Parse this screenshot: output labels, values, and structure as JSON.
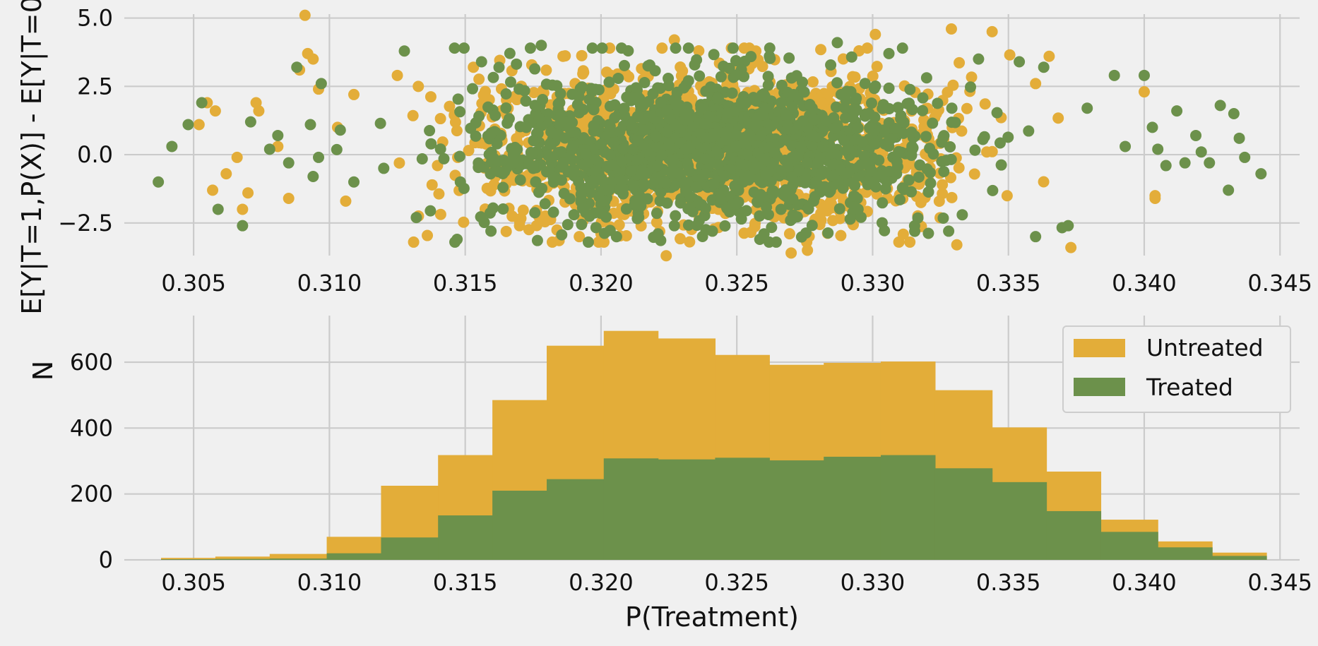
{
  "colors": {
    "untreated": "#e3ad39",
    "treated": "#6c914b",
    "background": "#f0f0f0",
    "grid": "#cbcbcb"
  },
  "chart_data": [
    {
      "type": "scatter",
      "title": "",
      "xlabel": "",
      "ylabel": "E[Y|T=1,P(X)] - E[Y|T=0",
      "xlim": [
        0.3025,
        0.3458
      ],
      "ylim": [
        -3.9,
        5.35
      ],
      "xticks": [
        "0.305",
        "0.310",
        "0.315",
        "0.320",
        "0.325",
        "0.330",
        "0.335",
        "0.340",
        "0.345"
      ],
      "yticks": [
        "5.0",
        "2.5",
        "0.0",
        "−2.5"
      ],
      "grid": true,
      "series": [
        {
          "name": "Untreated",
          "description": "Dense cloud centred near 0 (spread roughly -3.5 to 4.5) concentrated between x=0.312 and x=0.337; sparse points toward edges",
          "points": [
            [
              0.3052,
              1.1
            ],
            [
              0.3055,
              1.9
            ],
            [
              0.3057,
              -1.3
            ],
            [
              0.3058,
              1.6
            ],
            [
              0.3062,
              -0.7
            ],
            [
              0.3066,
              -0.1
            ],
            [
              0.3068,
              -2.0
            ],
            [
              0.307,
              -1.4
            ],
            [
              0.3073,
              1.9
            ],
            [
              0.3074,
              1.6
            ],
            [
              0.3081,
              0.3
            ],
            [
              0.3085,
              -1.6
            ],
            [
              0.3089,
              3.1
            ],
            [
              0.3091,
              5.1
            ],
            [
              0.3092,
              3.7
            ],
            [
              0.3094,
              3.5
            ],
            [
              0.3096,
              2.4
            ],
            [
              0.3103,
              1.0
            ],
            [
              0.3106,
              -1.7
            ],
            [
              0.3109,
              2.2
            ],
            [
              0.3125,
              2.9
            ],
            [
              0.3131,
              -3.2
            ],
            [
              0.3153,
              3.2
            ],
            [
              0.317,
              -2.6
            ],
            [
              0.3186,
              3.6
            ],
            [
              0.3192,
              -3.0
            ],
            [
              0.32,
              -2.9
            ],
            [
              0.3224,
              -3.7
            ],
            [
              0.3227,
              4.2
            ],
            [
              0.3236,
              3.8
            ],
            [
              0.3248,
              3.9
            ],
            [
              0.327,
              -3.6
            ],
            [
              0.3276,
              -3.5
            ],
            [
              0.3295,
              3.8
            ],
            [
              0.3301,
              4.4
            ],
            [
              0.3329,
              4.6
            ],
            [
              0.3331,
              -3.3
            ],
            [
              0.3344,
              4.5
            ],
            [
              0.336,
              2.6
            ],
            [
              0.3365,
              3.6
            ],
            [
              0.3373,
              -3.4
            ],
            [
              0.34,
              2.3
            ],
            [
              0.3404,
              -1.6
            ],
            [
              0.3404,
              -1.5
            ]
          ]
        },
        {
          "name": "Treated",
          "description": "Dense cloud centred near 0 overlapping the untreated cloud; sparse points toward edges",
          "points": [
            [
              0.3037,
              -1.0
            ],
            [
              0.3042,
              0.3
            ],
            [
              0.3048,
              1.1
            ],
            [
              0.3053,
              1.9
            ],
            [
              0.3059,
              -2.0
            ],
            [
              0.3068,
              -2.6
            ],
            [
              0.3071,
              1.2
            ],
            [
              0.3078,
              0.2
            ],
            [
              0.3081,
              0.7
            ],
            [
              0.3085,
              -0.3
            ],
            [
              0.3088,
              3.2
            ],
            [
              0.3093,
              1.1
            ],
            [
              0.3094,
              -0.8
            ],
            [
              0.3096,
              -0.1
            ],
            [
              0.3097,
              2.6
            ],
            [
              0.3104,
              0.9
            ],
            [
              0.3109,
              -1.0
            ],
            [
              0.312,
              -0.5
            ],
            [
              0.3132,
              -2.3
            ],
            [
              0.3147,
              -3.1
            ],
            [
              0.3156,
              3.4
            ],
            [
              0.3174,
              3.9
            ],
            [
              0.3178,
              4.0
            ],
            [
              0.321,
              3.8
            ],
            [
              0.3221,
              -2.9
            ],
            [
              0.3227,
              -2.6
            ],
            [
              0.3241,
              -2.8
            ],
            [
              0.326,
              -2.9
            ],
            [
              0.3262,
              3.6
            ],
            [
              0.3287,
              4.1
            ],
            [
              0.3306,
              3.7
            ],
            [
              0.3311,
              3.9
            ],
            [
              0.3328,
              -2.8
            ],
            [
              0.3333,
              -2.2
            ],
            [
              0.3339,
              3.5
            ],
            [
              0.3354,
              3.4
            ],
            [
              0.336,
              -3.0
            ],
            [
              0.3363,
              3.2
            ],
            [
              0.3372,
              -2.6
            ],
            [
              0.3379,
              1.7
            ],
            [
              0.3389,
              2.9
            ],
            [
              0.3393,
              0.3
            ],
            [
              0.34,
              2.9
            ],
            [
              0.3403,
              1.0
            ],
            [
              0.3405,
              0.2
            ],
            [
              0.3408,
              -0.4
            ],
            [
              0.3412,
              1.6
            ],
            [
              0.3415,
              -0.3
            ],
            [
              0.3419,
              0.7
            ],
            [
              0.3421,
              0.1
            ],
            [
              0.3424,
              -0.3
            ],
            [
              0.3428,
              1.8
            ],
            [
              0.3431,
              -1.3
            ],
            [
              0.3433,
              1.5
            ],
            [
              0.3435,
              0.6
            ],
            [
              0.3437,
              -0.1
            ],
            [
              0.3443,
              -0.7
            ]
          ]
        }
      ]
    },
    {
      "type": "bar",
      "title": "",
      "xlabel": "P(Treatment)",
      "ylabel": "N",
      "xlim": [
        0.3025,
        0.3458
      ],
      "ylim": [
        0,
        735
      ],
      "xticks": [
        "0.305",
        "0.310",
        "0.315",
        "0.320",
        "0.325",
        "0.330",
        "0.335",
        "0.340",
        "0.345"
      ],
      "yticks": [
        "0",
        "200",
        "400",
        "600"
      ],
      "grid": true,
      "legend_position": "top-right",
      "bin_edges": [
        0.3038,
        0.3058,
        0.3078,
        0.3099,
        0.3119,
        0.314,
        0.316,
        0.318,
        0.3201,
        0.3221,
        0.3242,
        0.3262,
        0.3282,
        0.3303,
        0.3323,
        0.3344,
        0.3364,
        0.3384,
        0.3405,
        0.3425,
        0.3445
      ],
      "series": [
        {
          "name": "Untreated",
          "values": [
            6,
            10,
            18,
            70,
            225,
            318,
            485,
            650,
            695,
            672,
            622,
            592,
            598,
            602,
            515,
            402,
            268,
            122,
            56,
            22
          ]
        },
        {
          "name": "Treated",
          "values": [
            2,
            3,
            4,
            20,
            68,
            135,
            210,
            245,
            308,
            305,
            310,
            302,
            313,
            318,
            278,
            236,
            148,
            85,
            38,
            12
          ]
        }
      ]
    }
  ]
}
